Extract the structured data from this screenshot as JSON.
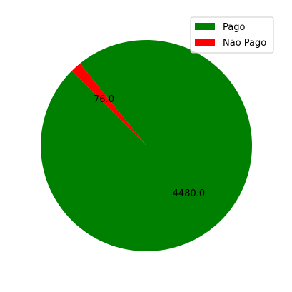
{
  "chart_data": {
    "type": "pie",
    "title": "",
    "labels": [
      "Pago",
      "Não Pago"
    ],
    "values": [
      4480.0,
      76.0
    ],
    "value_labels": [
      "4480.0",
      "76.0"
    ],
    "colors": [
      "#008000",
      "#ff0000"
    ],
    "start_angle_deg": 135,
    "counterclock": true,
    "legend": {
      "position": "upper-right",
      "entries": [
        "Pago",
        "Não Pago"
      ]
    }
  }
}
